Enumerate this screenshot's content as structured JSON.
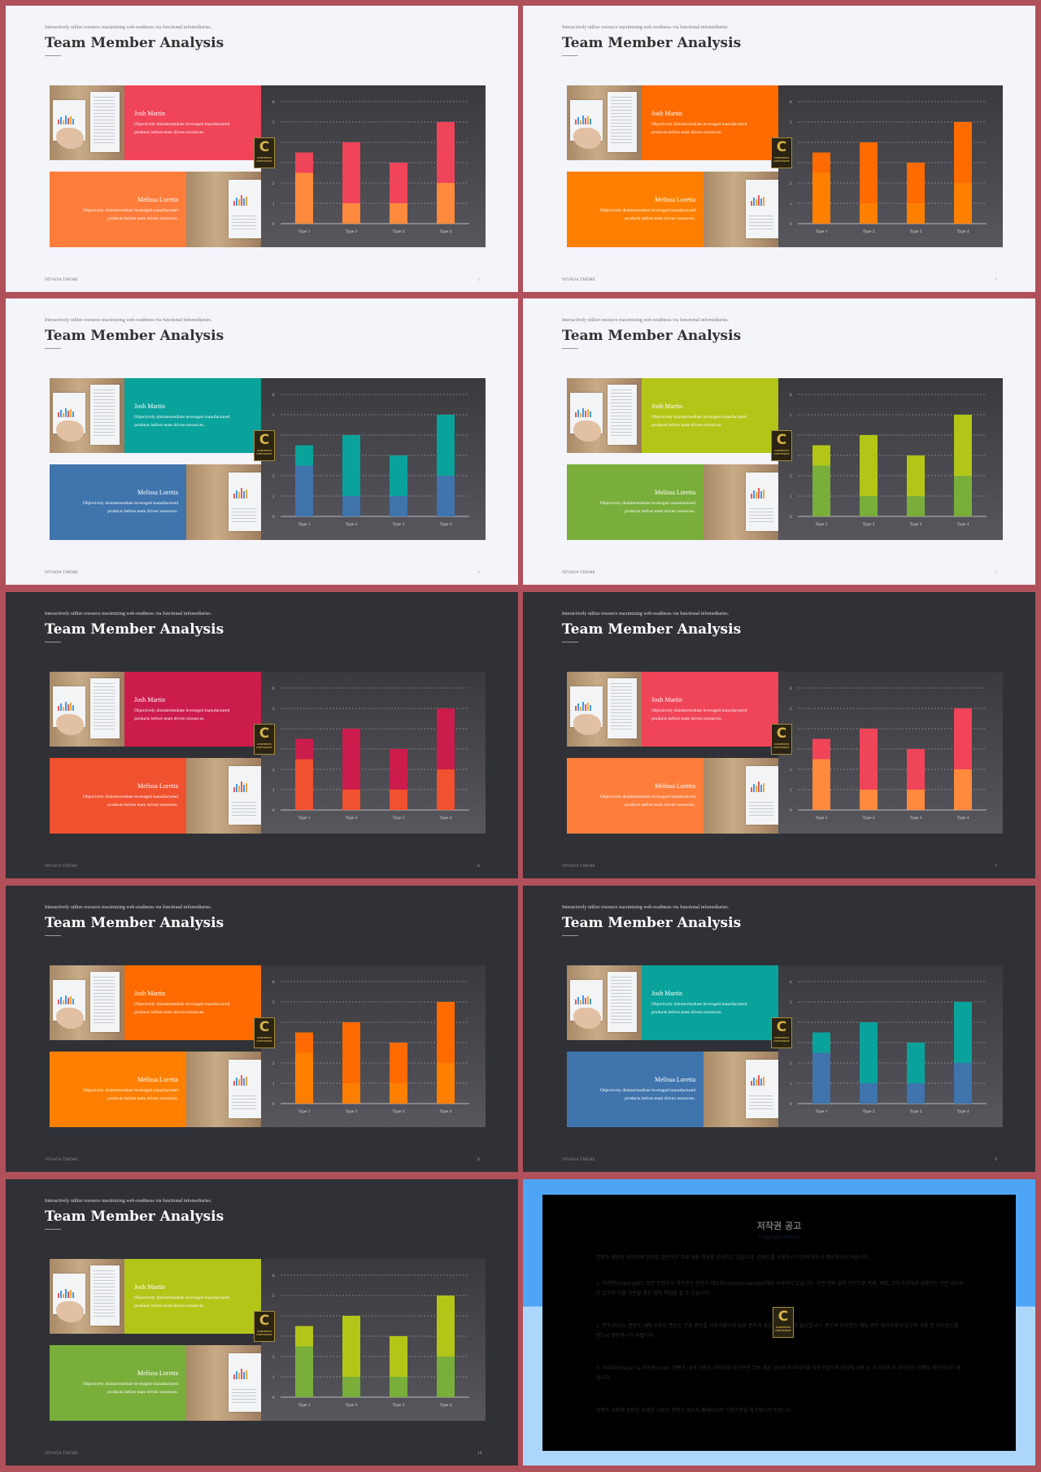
{
  "tagline": "Interactively utilize resource maximizing web-readiness via functional infomediaries.",
  "title": "Team Member Analysis",
  "footer": "NIVADA THEME",
  "member1": {
    "name": "Josh Martin",
    "desc1": "Objectively disintermediate leveraged manufactured",
    "desc2": "products before team driven resources."
  },
  "member2": {
    "name": "Melissa Loretta",
    "desc1": "Objectively disintermediate leveraged manufactured",
    "desc2": "products before team driven resources."
  },
  "logo": {
    "letter": "C",
    "text1": "CONTENTS",
    "text2": "COPYRIGHT"
  },
  "chart_data": {
    "type": "bar",
    "stacked": true,
    "categories": [
      "Type 1",
      "Type 2",
      "Type 3",
      "Type 4"
    ],
    "y_ticks": [
      "0",
      "1",
      "2",
      "3",
      "4",
      "5",
      "6"
    ],
    "ylim": [
      0,
      6
    ],
    "grid": true,
    "series": [
      {
        "values": [
          2.5,
          1,
          1,
          2
        ]
      },
      {
        "values": [
          1,
          3,
          2,
          3
        ]
      }
    ]
  },
  "slides": [
    {
      "page": "2",
      "theme": "light",
      "colors": {
        "top": "#f04458",
        "bottom": "#ff7d3b",
        "seg1": "#ff8a3d",
        "seg2": "#f04458"
      }
    },
    {
      "page": "3",
      "theme": "light",
      "colors": {
        "top": "#ff6b00",
        "bottom": "#ff8000",
        "seg1": "#ff8000",
        "seg2": "#ff6b00"
      }
    },
    {
      "page": "4",
      "theme": "light",
      "colors": {
        "top": "#0aa39b",
        "bottom": "#3f74ad",
        "seg1": "#3f74ad",
        "seg2": "#0aa39b"
      }
    },
    {
      "page": "5",
      "theme": "light",
      "colors": {
        "top": "#b3c618",
        "bottom": "#79ae3b",
        "seg1": "#79ae3b",
        "seg2": "#b3c618"
      }
    },
    {
      "page": "6",
      "theme": "dark",
      "colors": {
        "top": "#cc1c4b",
        "bottom": "#f0512f",
        "seg1": "#f0512f",
        "seg2": "#cc1c4b"
      }
    },
    {
      "page": "7",
      "theme": "dark",
      "colors": {
        "top": "#f04458",
        "bottom": "#ff7d3b",
        "seg1": "#ff8a3d",
        "seg2": "#f04458"
      }
    },
    {
      "page": "8",
      "theme": "dark",
      "colors": {
        "top": "#ff6b00",
        "bottom": "#ff8000",
        "seg1": "#ff8000",
        "seg2": "#ff6b00"
      }
    },
    {
      "page": "9",
      "theme": "dark",
      "colors": {
        "top": "#0aa39b",
        "bottom": "#3f74ad",
        "seg1": "#3f74ad",
        "seg2": "#0aa39b"
      }
    },
    {
      "page": "10",
      "theme": "dark",
      "colors": {
        "top": "#b3c618",
        "bottom": "#79ae3b",
        "seg1": "#79ae3b",
        "seg2": "#b3c618"
      }
    }
  ],
  "notice": {
    "title": "저작권 공고",
    "subtitle": "Copyright Notice",
    "p1": "컨텐츠 제공자 사이트에 관련된 일반적인 주요 내용 정보를 안내하고 있습니다. 컨텐츠를 사용하시기 전에 반드시 확인하시기 바랍니다.",
    "p2": "1. 저작권(copyright): 모든 컨텐츠의 저작권은 컨텐츠 제공자(contentsdesign)에게 귀속되어 있습니다. 사전 허락 없이 무단으로 복제, 배포, 2차 가공하여 사용하는 것은 금지되어 있으며 이를 위반할 경우 법적 책임을 질 수 있습니다.",
    "p3": "2. 폰트(font): 컨텐츠 내에 사용된 폰트는 무료 폰트를 사용하였으며 유료 폰트의 경우 별도 구매가 필요합니다. 폰트의 저작권은 해당 폰트 제작사에게 있으며 사용 전 라이선스를 반드시 확인하시기 바랍니다.",
    "p4": "3. 이미지(image) & 아이콘(icon): 컨텐츠 내에 사용된 이미지와 아이콘은 무료 제공 사이트의 이미지를 사용하였으며 상업적 이용 시 각 사이트의 라이선스 정책을 확인하시기 바랍니다.",
    "p5": "컨텐츠 사용에 관련된 자세한 사항은 컨텐츠 제공자 홈페이지의 이용약관을 참고하시기 바랍니다."
  }
}
